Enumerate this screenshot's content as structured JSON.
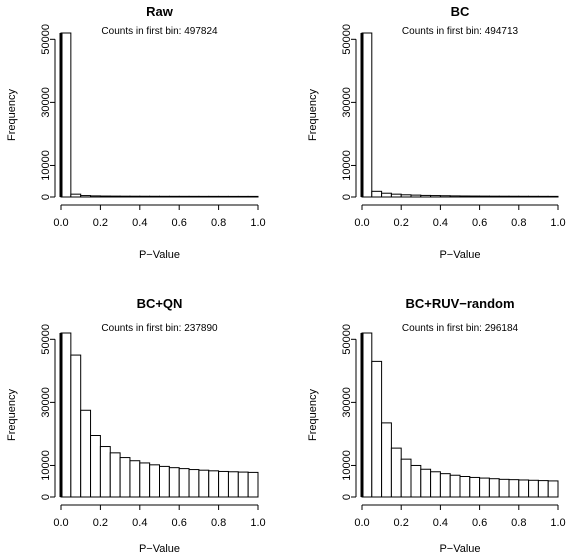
{
  "chart_data": [
    {
      "type": "bar",
      "title": "Raw",
      "subtitle": "Counts in first bin: 497824",
      "xlabel": "P−Value",
      "ylabel": "Frequency",
      "xlim": [
        0,
        1
      ],
      "ylim": [
        0,
        52000
      ],
      "bin_width": 0.05,
      "x_ticks": [
        "0.0",
        "0.2",
        "0.4",
        "0.6",
        "0.8",
        "1.0"
      ],
      "y_ticks": [
        "0",
        "10000",
        "30000",
        "50000"
      ],
      "values": [
        52000,
        900,
        450,
        350,
        300,
        280,
        260,
        250,
        240,
        230,
        220,
        215,
        210,
        205,
        200,
        200,
        195,
        190,
        190,
        190
      ]
    },
    {
      "type": "bar",
      "title": "BC",
      "subtitle": "Counts in first bin: 494713",
      "xlabel": "P−Value",
      "ylabel": "Frequency",
      "xlim": [
        0,
        1
      ],
      "ylim": [
        0,
        52000
      ],
      "bin_width": 0.05,
      "x_ticks": [
        "0.0",
        "0.2",
        "0.4",
        "0.6",
        "0.8",
        "1.0"
      ],
      "y_ticks": [
        "0",
        "10000",
        "30000",
        "50000"
      ],
      "values": [
        52000,
        1800,
        1200,
        900,
        700,
        600,
        500,
        450,
        400,
        350,
        320,
        300,
        280,
        260,
        250,
        240,
        230,
        220,
        210,
        200
      ]
    },
    {
      "type": "bar",
      "title": "BC+QN",
      "subtitle": "Counts in first bin: 237890",
      "xlabel": "P−Value",
      "ylabel": "Frequency",
      "xlim": [
        0,
        1
      ],
      "ylim": [
        0,
        52000
      ],
      "bin_width": 0.05,
      "x_ticks": [
        "0.0",
        "0.2",
        "0.4",
        "0.6",
        "0.8",
        "1.0"
      ],
      "y_ticks": [
        "0",
        "10000",
        "30000",
        "50000"
      ],
      "values": [
        52000,
        45000,
        27500,
        19500,
        16000,
        14000,
        12500,
        11500,
        10800,
        10200,
        9700,
        9300,
        9000,
        8700,
        8500,
        8300,
        8100,
        8000,
        7900,
        7800
      ]
    },
    {
      "type": "bar",
      "title": "BC+RUV−random",
      "subtitle": "Counts in first bin: 296184",
      "xlabel": "P−Value",
      "ylabel": "Frequency",
      "xlim": [
        0,
        1
      ],
      "ylim": [
        0,
        52000
      ],
      "bin_width": 0.05,
      "x_ticks": [
        "0.0",
        "0.2",
        "0.4",
        "0.6",
        "0.8",
        "1.0"
      ],
      "y_ticks": [
        "0",
        "10000",
        "30000",
        "50000"
      ],
      "values": [
        52000,
        43000,
        23500,
        15500,
        12000,
        10000,
        8800,
        8000,
        7400,
        6900,
        6500,
        6200,
        6000,
        5800,
        5600,
        5500,
        5400,
        5300,
        5200,
        5100
      ]
    }
  ]
}
